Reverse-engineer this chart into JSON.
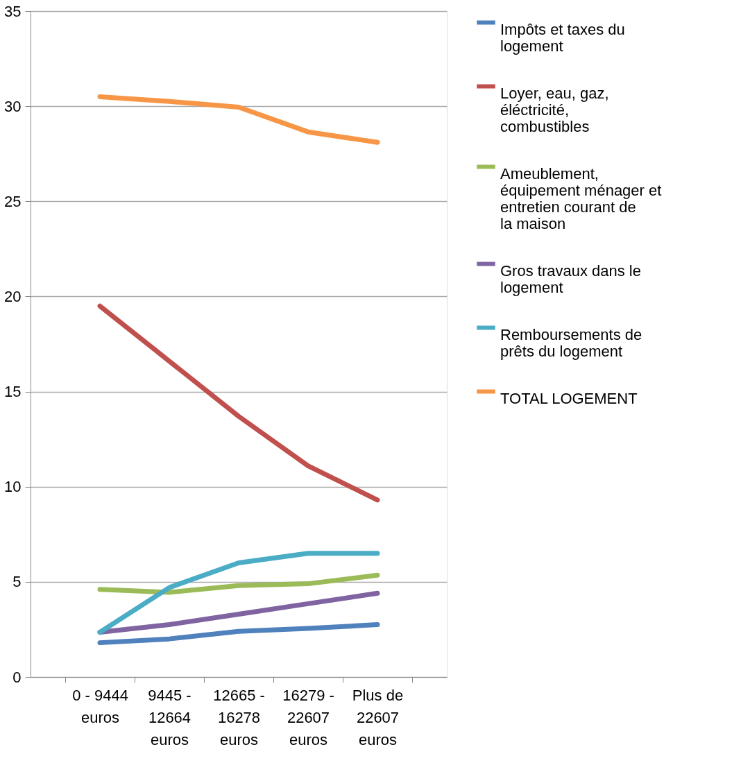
{
  "chart_data": {
    "type": "line",
    "categories": [
      "0 - 9444 euros",
      "9445 - 12664 euros",
      "12665 - 16278 euros",
      "16279 - 22607 euros",
      "Plus de 22607 euros"
    ],
    "series": [
      {
        "name": "Impôts et taxes du logement",
        "color": "#4f81bd",
        "values": [
          1.8,
          2.0,
          2.4,
          2.55,
          2.75
        ]
      },
      {
        "name": "Loyer, eau, gaz, éléctricité, combustibles",
        "color": "#c0504d",
        "values": [
          19.5,
          16.6,
          13.7,
          11.1,
          9.3
        ]
      },
      {
        "name": "Ameublement, équipement ménager et entretien courant de la maison",
        "color": "#9bbb59",
        "values": [
          4.6,
          4.45,
          4.8,
          4.9,
          5.35
        ]
      },
      {
        "name": "Gros travaux dans le logement",
        "color": "#8064a2",
        "values": [
          2.35,
          2.75,
          3.3,
          3.85,
          4.4
        ]
      },
      {
        "name": "Remboursements de prêts du logement",
        "color": "#4bacc6",
        "values": [
          2.35,
          4.7,
          6.0,
          6.5,
          6.5
        ]
      },
      {
        "name": "TOTAL LOGEMENT",
        "color": "#f79646",
        "values": [
          30.5,
          30.25,
          29.95,
          28.65,
          28.1
        ]
      }
    ],
    "ylim": [
      0,
      35
    ],
    "yticks": [
      0,
      5,
      10,
      15,
      20,
      25,
      30,
      35
    ],
    "grid": "y",
    "legend": "right",
    "marker": "none",
    "line_style": "solid"
  }
}
